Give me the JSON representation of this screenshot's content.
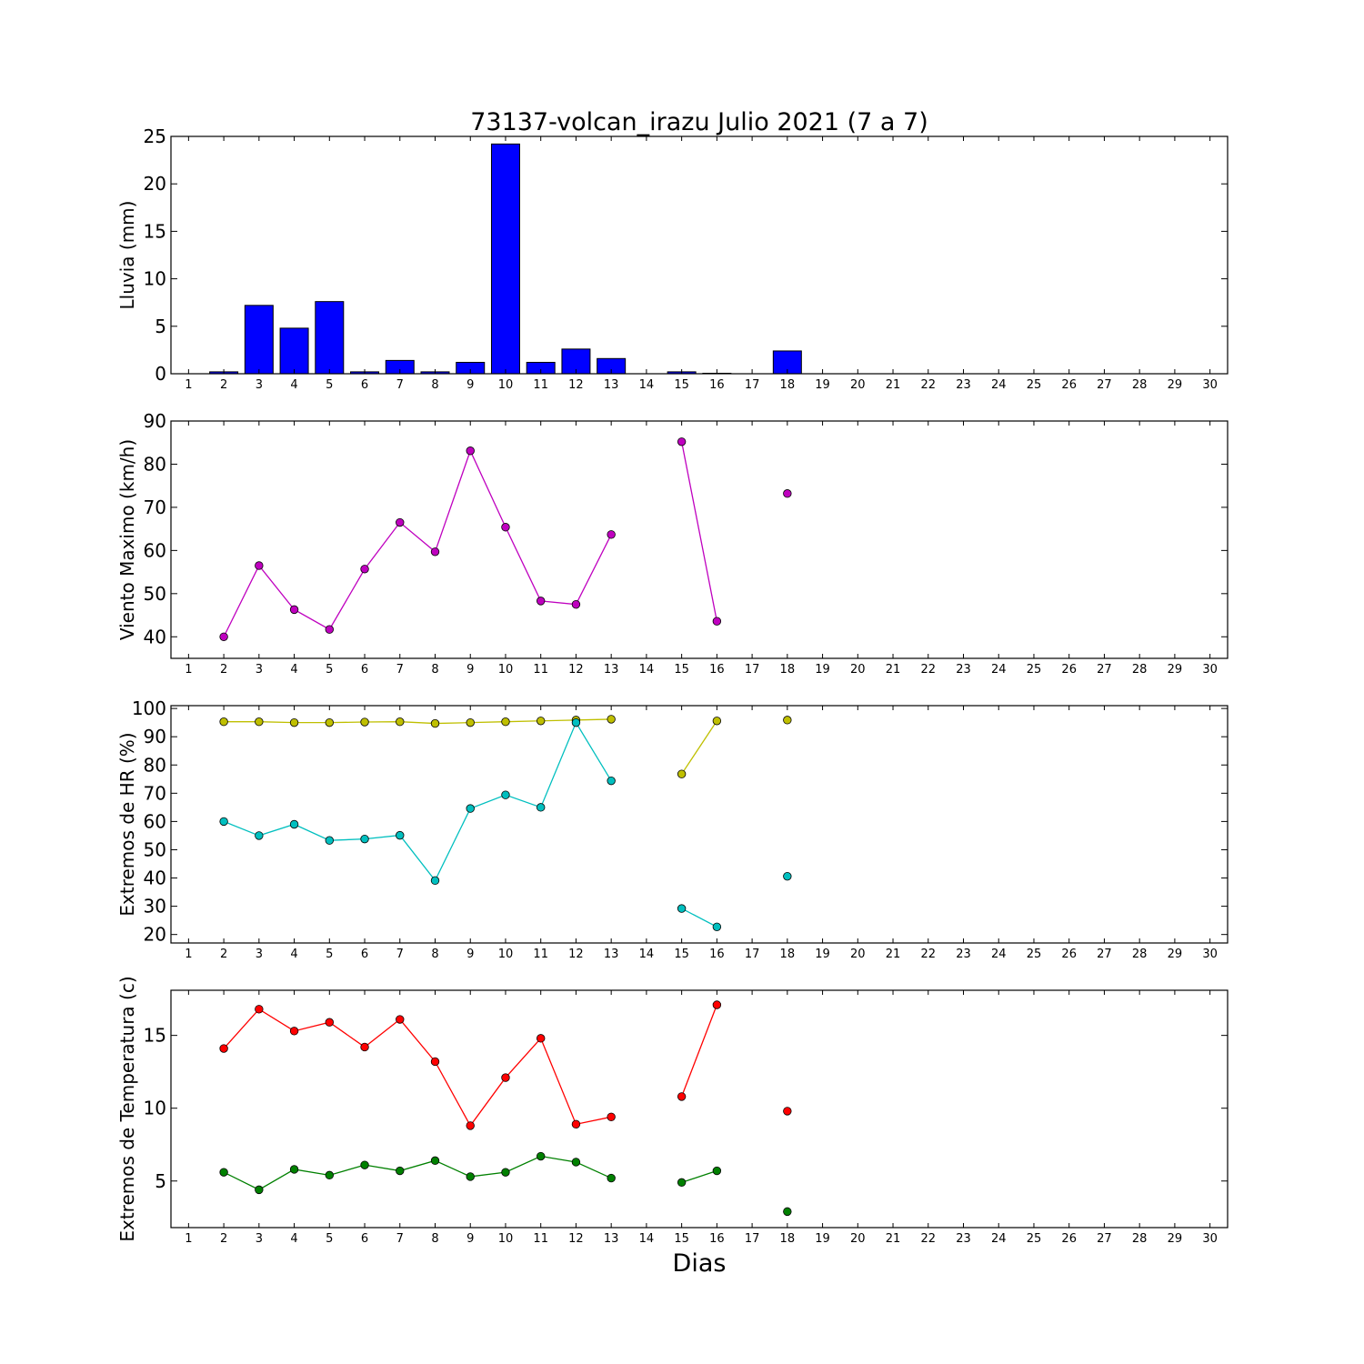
{
  "figure": {
    "title": "73137-volcan_irazu Julio 2021  (7 a 7)",
    "xlabel": "Dias"
  },
  "chart_data": [
    {
      "type": "bar",
      "ylabel": "Lluvia (mm)",
      "xlim": [
        0.5,
        30.5
      ],
      "ylim": [
        0,
        25
      ],
      "yticks": [
        0,
        5,
        10,
        15,
        20,
        25
      ],
      "xticks": [
        1,
        2,
        3,
        4,
        5,
        6,
        7,
        8,
        9,
        10,
        11,
        12,
        13,
        14,
        15,
        16,
        17,
        18,
        19,
        20,
        21,
        22,
        23,
        24,
        25,
        26,
        27,
        28,
        29,
        30
      ],
      "series": [
        {
          "color": "#0000ff",
          "points": [
            [
              2,
              0.2
            ],
            [
              3,
              7.2
            ],
            [
              4,
              4.8
            ],
            [
              5,
              7.6
            ],
            [
              6,
              0.2
            ],
            [
              7,
              1.4
            ],
            [
              8,
              0.2
            ],
            [
              9,
              1.2
            ],
            [
              10,
              24.2
            ],
            [
              11,
              1.2
            ],
            [
              12,
              2.6
            ],
            [
              13,
              1.6
            ],
            [
              15,
              0.2
            ],
            [
              16,
              0.05
            ],
            [
              18,
              2.4
            ]
          ]
        }
      ]
    },
    {
      "type": "line",
      "ylabel": "Viento Maximo (km/h)",
      "xlim": [
        0.5,
        30.5
      ],
      "ylim": [
        35,
        90
      ],
      "yticks": [
        40,
        50,
        60,
        70,
        80,
        90
      ],
      "xticks": [
        1,
        2,
        3,
        4,
        5,
        6,
        7,
        8,
        9,
        10,
        11,
        12,
        13,
        14,
        15,
        16,
        17,
        18,
        19,
        20,
        21,
        22,
        23,
        24,
        25,
        26,
        27,
        28,
        29,
        30
      ],
      "series": [
        {
          "color": "#bf00bf",
          "points": [
            [
              2,
              40.0
            ],
            [
              3,
              56.5
            ],
            [
              4,
              46.3
            ],
            [
              5,
              41.7
            ],
            [
              6,
              55.7
            ],
            [
              7,
              66.5
            ],
            [
              8,
              59.7
            ],
            [
              9,
              83.1
            ],
            [
              10,
              65.4
            ],
            [
              11,
              48.3
            ],
            [
              12,
              47.5
            ],
            [
              13,
              63.7
            ],
            [
              14,
              null
            ],
            [
              15,
              85.2
            ],
            [
              16,
              43.6
            ],
            [
              17,
              null
            ],
            [
              18,
              73.2
            ]
          ]
        }
      ]
    },
    {
      "type": "line",
      "ylabel": "Extremos de HR (%)",
      "xlim": [
        0.5,
        30.5
      ],
      "ylim": [
        17,
        101
      ],
      "yticks": [
        20,
        30,
        40,
        50,
        60,
        70,
        80,
        90,
        100
      ],
      "xticks": [
        1,
        2,
        3,
        4,
        5,
        6,
        7,
        8,
        9,
        10,
        11,
        12,
        13,
        14,
        15,
        16,
        17,
        18,
        19,
        20,
        21,
        22,
        23,
        24,
        25,
        26,
        27,
        28,
        29,
        30
      ],
      "series": [
        {
          "color": "#bfbf00",
          "points": [
            [
              2,
              95.3
            ],
            [
              3,
              95.3
            ],
            [
              4,
              95.0
            ],
            [
              5,
              95.0
            ],
            [
              6,
              95.2
            ],
            [
              7,
              95.3
            ],
            [
              8,
              94.7
            ],
            [
              9,
              95.0
            ],
            [
              10,
              95.3
            ],
            [
              11,
              95.6
            ],
            [
              12,
              95.9
            ],
            [
              13,
              96.2
            ],
            [
              14,
              null
            ],
            [
              15,
              76.8
            ],
            [
              16,
              95.6
            ],
            [
              17,
              null
            ],
            [
              18,
              95.9
            ]
          ]
        },
        {
          "color": "#00bfbf",
          "points": [
            [
              2,
              60.0
            ],
            [
              3,
              55.0
            ],
            [
              4,
              59.0
            ],
            [
              5,
              53.3
            ],
            [
              6,
              53.8
            ],
            [
              7,
              55.1
            ],
            [
              8,
              39.1
            ],
            [
              9,
              64.6
            ],
            [
              10,
              69.4
            ],
            [
              11,
              65.0
            ],
            [
              12,
              95.0
            ],
            [
              13,
              74.4
            ],
            [
              14,
              null
            ],
            [
              15,
              29.2
            ],
            [
              16,
              22.7
            ],
            [
              17,
              null
            ],
            [
              18,
              40.6
            ]
          ]
        }
      ]
    },
    {
      "type": "line",
      "ylabel": "Extremos de Temperatura (c)",
      "xlim": [
        0.5,
        30.5
      ],
      "ylim": [
        1.8,
        18.1
      ],
      "yticks": [
        5,
        10,
        15
      ],
      "xticks": [
        1,
        2,
        3,
        4,
        5,
        6,
        7,
        8,
        9,
        10,
        11,
        12,
        13,
        14,
        15,
        16,
        17,
        18,
        19,
        20,
        21,
        22,
        23,
        24,
        25,
        26,
        27,
        28,
        29,
        30
      ],
      "series": [
        {
          "color": "#ff0000",
          "points": [
            [
              2,
              14.1
            ],
            [
              3,
              16.8
            ],
            [
              4,
              15.3
            ],
            [
              5,
              15.9
            ],
            [
              6,
              14.2
            ],
            [
              7,
              16.1
            ],
            [
              8,
              13.2
            ],
            [
              9,
              8.8
            ],
            [
              10,
              12.1
            ],
            [
              11,
              14.8
            ],
            [
              12,
              8.9
            ],
            [
              13,
              9.4
            ],
            [
              14,
              null
            ],
            [
              15,
              10.8
            ],
            [
              16,
              17.1
            ],
            [
              17,
              null
            ],
            [
              18,
              9.8
            ]
          ]
        },
        {
          "color": "#008000",
          "points": [
            [
              2,
              5.6
            ],
            [
              3,
              4.4
            ],
            [
              4,
              5.8
            ],
            [
              5,
              5.4
            ],
            [
              6,
              6.1
            ],
            [
              7,
              5.7
            ],
            [
              8,
              6.4
            ],
            [
              9,
              5.3
            ],
            [
              10,
              5.6
            ],
            [
              11,
              6.7
            ],
            [
              12,
              6.3
            ],
            [
              13,
              5.2
            ],
            [
              14,
              null
            ],
            [
              15,
              4.9
            ],
            [
              16,
              5.7
            ],
            [
              17,
              null
            ],
            [
              18,
              2.9
            ]
          ]
        }
      ]
    }
  ]
}
